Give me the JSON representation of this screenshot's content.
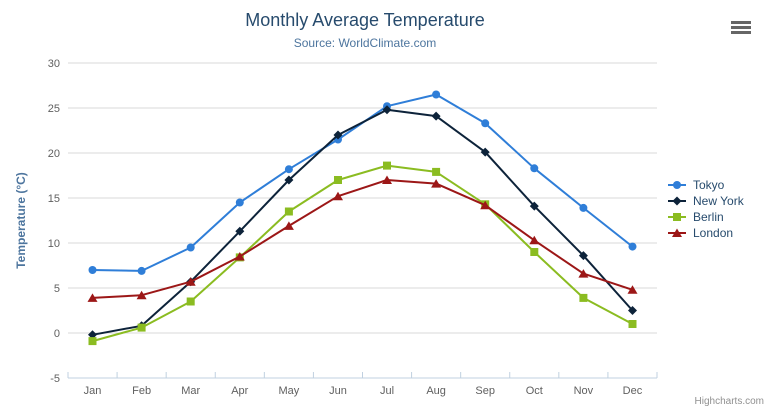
{
  "credits": {
    "text": "Highcharts.com"
  },
  "export_menu": {
    "icon": "hamburger-icon"
  },
  "chart_data": {
    "type": "line",
    "title": "Monthly Average Temperature",
    "subtitle": "Source: WorldClimate.com",
    "xlabel": "",
    "ylabel": "Temperature (°C)",
    "ylim": [
      -5,
      30
    ],
    "y_tick_interval": 5,
    "grid": true,
    "legend_position": "right",
    "categories": [
      "Jan",
      "Feb",
      "Mar",
      "Apr",
      "May",
      "Jun",
      "Jul",
      "Aug",
      "Sep",
      "Oct",
      "Nov",
      "Dec"
    ],
    "series": [
      {
        "name": "Tokyo",
        "color": "#2f7ed8",
        "marker": "circle",
        "values": [
          7.0,
          6.9,
          9.5,
          14.5,
          18.2,
          21.5,
          25.2,
          26.5,
          23.3,
          18.3,
          13.9,
          9.6
        ]
      },
      {
        "name": "New York",
        "color": "#0d233a",
        "marker": "diamond",
        "values": [
          -0.2,
          0.8,
          5.7,
          11.3,
          17.0,
          22.0,
          24.8,
          24.1,
          20.1,
          14.1,
          8.6,
          2.5
        ]
      },
      {
        "name": "Berlin",
        "color": "#8bbc21",
        "marker": "square",
        "values": [
          -0.9,
          0.6,
          3.5,
          8.4,
          13.5,
          17.0,
          18.6,
          17.9,
          14.3,
          9.0,
          3.9,
          1.0
        ]
      },
      {
        "name": "London",
        "color": "#9c1717",
        "marker": "triangle",
        "values": [
          3.9,
          4.2,
          5.7,
          8.5,
          11.9,
          15.2,
          17.0,
          16.6,
          14.2,
          10.3,
          6.6,
          4.8
        ]
      }
    ],
    "axis_colors": {
      "gridline": "#d8d8d8",
      "axis_line": "#c0d0e0",
      "labels": "#606060",
      "axis_title": "#4d759e"
    }
  }
}
